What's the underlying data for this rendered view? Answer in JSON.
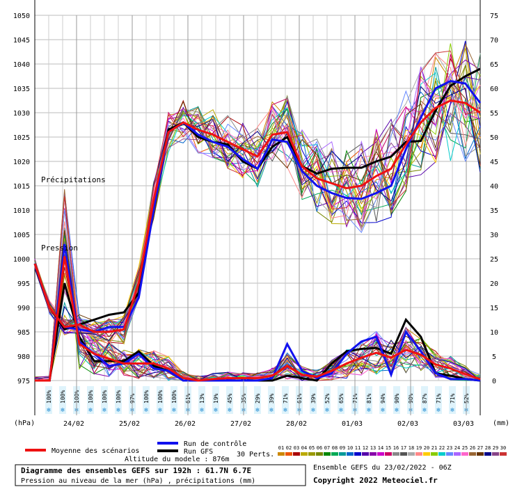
{
  "chart_data": {
    "type": "line",
    "left_axis_unit": "(hPa)",
    "right_axis_unit": "(mm)",
    "pressure_label": "Pression",
    "precip_label": "Précipitations",
    "ylim_pressure": [
      975,
      1050
    ],
    "ylim_precip": [
      0,
      75
    ],
    "y_ticks_pressure": [
      975,
      980,
      985,
      990,
      995,
      1000,
      1005,
      1010,
      1015,
      1020,
      1025,
      1030,
      1035,
      1040,
      1045,
      1050
    ],
    "y_ticks_precip": [
      0,
      5,
      10,
      15,
      20,
      25,
      30,
      35,
      40,
      45,
      50,
      55,
      60,
      65,
      70,
      75
    ],
    "x_hours": [
      0,
      192
    ],
    "x_ticks": [
      {
        "label": "24/02",
        "hour": 18
      },
      {
        "label": "25/02",
        "hour": 42
      },
      {
        "label": "26/02",
        "hour": 66
      },
      {
        "label": "27/02",
        "hour": 90
      },
      {
        "label": "28/02",
        "hour": 114
      },
      {
        "label": "01/03",
        "hour": 138
      },
      {
        "label": "02/03",
        "hour": 162
      },
      {
        "label": "03/03",
        "hour": 186
      }
    ],
    "snow_probability": [
      "100%",
      "100%",
      "100%",
      "100%",
      "100%",
      "100%",
      "97%",
      "100%",
      "100%",
      "100%",
      "61%",
      "13%",
      "19%",
      "45%",
      "35%",
      "29%",
      "39%",
      "71%",
      "61%",
      "39%",
      "52%",
      "65%",
      "71%",
      "81%",
      "94%",
      "90%",
      "90%",
      "87%",
      "71%",
      "71%",
      "52%"
    ],
    "series": [
      {
        "name": "Moyenne des scénarios",
        "color": "#ee1111",
        "pressure": [
          999,
          990,
          986,
          986.5,
          985,
          985,
          985.5,
          995,
          1012,
          1026,
          1028,
          1026.5,
          1025.5,
          1024,
          1022.5,
          1021,
          1025.5,
          1026,
          1019,
          1016.5,
          1015.5,
          1014.5,
          1015,
          1017,
          1018.5,
          1023.5,
          1028,
          1031,
          1032.5,
          1032,
          1030
        ],
        "precip": [
          0,
          0,
          25.5,
          7.5,
          5.5,
          4.5,
          3.5,
          3.5,
          3.5,
          2.5,
          0.5,
          0,
          0.3,
          0.5,
          0.5,
          0.5,
          1,
          3,
          1.2,
          0.8,
          2,
          3.5,
          4.7,
          5.7,
          4.7,
          6.3,
          5.3,
          3.3,
          2.5,
          1.3,
          0.3
        ]
      },
      {
        "name": "Run de contrôle",
        "color": "#1111ee",
        "pressure": [
          999,
          990,
          986,
          985.5,
          985,
          986,
          986,
          992,
          1010,
          1026,
          1028,
          1025.5,
          1024,
          1023,
          1020.5,
          1018.5,
          1024.5,
          1024,
          1018,
          1015,
          1013.5,
          1012.5,
          1012.3,
          1013.5,
          1015,
          1022.5,
          1029,
          1035,
          1036.5,
          1036,
          1032
        ],
        "precip": [
          0,
          0,
          28,
          8,
          5.5,
          3,
          3.5,
          5.5,
          2.5,
          2,
          0,
          0,
          0,
          0,
          0,
          0,
          0.5,
          7.5,
          2,
          0.5,
          1.5,
          5.5,
          8,
          9,
          1.2,
          10,
          6,
          1.5,
          0.3,
          0.3,
          0
        ]
      },
      {
        "name": "Run GFS",
        "color": "#000000",
        "pressure": [
          999,
          990,
          985.5,
          986.5,
          987.5,
          988.5,
          989,
          993,
          1011,
          1026.5,
          1028,
          1025,
          1024,
          1023.5,
          1020,
          1018.5,
          1023,
          1025,
          1019,
          1017.5,
          1018.5,
          1018.7,
          1018.7,
          1020,
          1021,
          1024,
          1024.2,
          1030.5,
          1035.5,
          1037.5,
          1039
        ],
        "precip": [
          0,
          0,
          20,
          9,
          4,
          4,
          4,
          6,
          3,
          2,
          0,
          0,
          0,
          0,
          0,
          0,
          0,
          1,
          0.5,
          0,
          3.5,
          6,
          6.5,
          6.7,
          5.5,
          12.5,
          9,
          1.5,
          1,
          0.3,
          0
        ]
      }
    ],
    "perturbation_count": 30
  },
  "legend": {
    "mean_label": "Moyenne des scénarios",
    "control_label": "Run de contrôle",
    "gfs_label": "Run GFS",
    "perts_label": "30 Perts.",
    "pert_numbers": [
      "01",
      "02",
      "03",
      "04",
      "05",
      "06",
      "07",
      "08",
      "09",
      "10",
      "11",
      "12",
      "13",
      "14",
      "15",
      "16",
      "17",
      "18",
      "19",
      "20",
      "21",
      "22",
      "23",
      "24",
      "25",
      "26",
      "27",
      "28",
      "29",
      "30"
    ],
    "pert_colors": [
      "#cc8800",
      "#ee5500",
      "#aa0000",
      "#bbaa00",
      "#999900",
      "#778800",
      "#008800",
      "#00aa55",
      "#009999",
      "#0066cc",
      "#0000cc",
      "#5500aa",
      "#8800aa",
      "#cc00cc",
      "#cc0066",
      "#888888",
      "#555555",
      "#aaaaaa",
      "#ff8888",
      "#ffcc00",
      "#88cc00",
      "#00cccc",
      "#6688ff",
      "#aa66ff",
      "#ff66cc",
      "#996633",
      "#663300",
      "#000088",
      "#884488",
      "#cc3333"
    ],
    "model_altitude": "Altitude du modele : 876m"
  },
  "footer": {
    "title": "Diagramme des ensembles GEFS sur 192h : 61.7N 6.7E",
    "subtitle": "Pression au niveau de la mer (hPa) , précipitations (mm)",
    "ensemble": "Ensemble GEFS du 23/02/2022 - 06Z",
    "copyright": "Copyright 2022 Meteociel.fr"
  }
}
